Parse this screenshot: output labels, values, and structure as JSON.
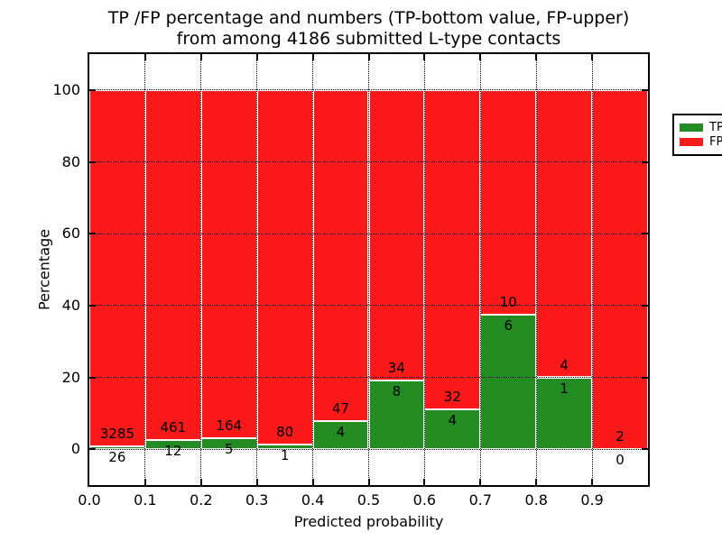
{
  "title": {
    "line1": "TP /FP percentage and numbers (TP-bottom value, FP-upper)",
    "line2": "from among 4186 submitted L-type contacts"
  },
  "chart_data": {
    "type": "bar",
    "stacked": true,
    "title": "TP /FP percentage and numbers (TP-bottom value, FP-upper) from among 4186 submitted L-type contacts",
    "xlabel": "Predicted probability",
    "ylabel": "Percentage",
    "x_bin_edges": [
      0.0,
      0.1,
      0.2,
      0.3,
      0.4,
      0.5,
      0.6,
      0.7,
      0.8,
      0.9,
      1.0
    ],
    "series": [
      {
        "name": "TP",
        "color": "#228B22",
        "counts": [
          26,
          12,
          5,
          1,
          4,
          8,
          4,
          6,
          1,
          0
        ]
      },
      {
        "name": "FP",
        "color": "#FB1919",
        "counts": [
          3285,
          461,
          164,
          80,
          47,
          34,
          32,
          10,
          4,
          2
        ]
      }
    ],
    "tp_percent_of_bin": [
      0.79,
      2.54,
      2.96,
      1.23,
      7.84,
      19.05,
      11.11,
      37.5,
      20.0,
      0.0
    ],
    "total_contacts": 4186,
    "xtick_labels": [
      "0.0",
      "0.1",
      "0.2",
      "0.3",
      "0.4",
      "0.5",
      "0.6",
      "0.7",
      "0.8",
      "0.9"
    ],
    "yticks": [
      0,
      20,
      40,
      60,
      80,
      100
    ],
    "xlim": [
      0.0,
      1.0
    ],
    "ylim": [
      -10,
      110
    ],
    "grid": "dotted-black-over-bars",
    "bar_edge_color": "#FFFFFF",
    "legend": {
      "position": "upper right",
      "entries": [
        {
          "label": "TP",
          "color": "#228B22"
        },
        {
          "label": "FP",
          "color": "#FB1919"
        }
      ]
    }
  }
}
